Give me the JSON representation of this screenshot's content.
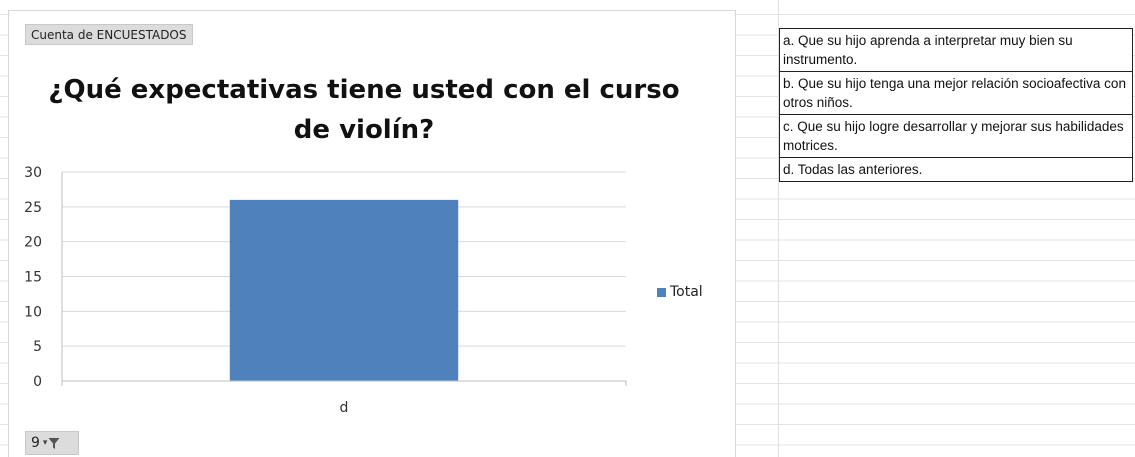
{
  "pivot_field_button": "Cuenta de ENCUESTADOS",
  "filter_button": "9",
  "chart_data": {
    "type": "bar",
    "title": "¿Qué expectativas tiene usted con el curso de violín?",
    "categories": [
      "d"
    ],
    "series": [
      {
        "name": "Total",
        "values": [
          26
        ],
        "color": "#4f81bd"
      }
    ],
    "ylim": [
      0,
      30
    ],
    "yticks": [
      0,
      5,
      10,
      15,
      20,
      25,
      30
    ],
    "grid": true,
    "legend_position": "right"
  },
  "options": [
    "a.   Que su hijo aprenda a interpretar muy bien su instrumento.",
    "b.   Que su hijo tenga una mejor relación socioafectiva con otros niños.",
    "c.    Que su hijo logre desarrollar y mejorar sus habilidades motrices.",
    "d.   Todas las anteriores."
  ]
}
